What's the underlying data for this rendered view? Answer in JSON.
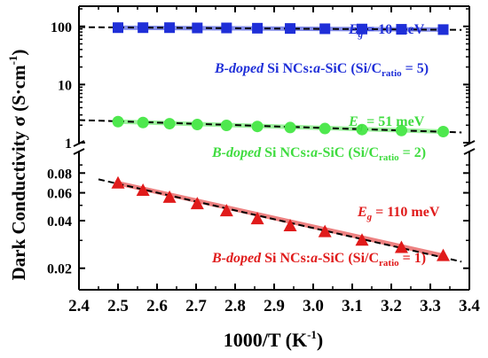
{
  "chart_data": {
    "type": "scatter",
    "xlabel": "1000/T (K",
    "xlabel_sup": "-1",
    "xlabel_close": ")",
    "ylabel": "Dark Conductivity σ (S·cm",
    "ylabel_sup": "-1",
    "ylabel_close": ")",
    "xlim": [
      2.4,
      3.4
    ],
    "x_ticks": [
      "2.4",
      "2.5",
      "2.6",
      "2.7",
      "2.8",
      "2.9",
      "3.0",
      "3.1",
      "3.2",
      "3.3",
      "3.4"
    ],
    "y_scale": "log, broken axis",
    "y_segments": [
      {
        "range": [
          1,
          100
        ],
        "ticks": [
          "1",
          "10",
          "100"
        ]
      },
      {
        "range": [
          0.015,
          0.1
        ],
        "ticks": [
          "0.02",
          "0.04",
          "0.06",
          "0.08"
        ]
      }
    ],
    "series": [
      {
        "marker": "square",
        "color": "#1f2fd8",
        "x": [
          2.5,
          2.564,
          2.632,
          2.703,
          2.778,
          2.857,
          2.941,
          3.03,
          3.125,
          3.226,
          3.333
        ],
        "y": [
          95,
          95,
          95,
          94,
          94,
          93,
          92,
          91,
          90,
          89,
          88
        ],
        "fit": [
          [
            2.4,
            97
          ],
          [
            3.38,
            87
          ]
        ],
        "eg_label": "E",
        "eg_sub": "g",
        "eg_value": " = 10 meV",
        "desc_italic": "B-doped",
        "desc_mid": " Si NCs:",
        "desc_italic2": "a",
        "desc_rest": "-SiC (Si/C",
        "desc_sub": "ratio",
        "desc_end": " = 5)"
      },
      {
        "marker": "circle",
        "color": "#4ee84e",
        "x": [
          2.5,
          2.564,
          2.632,
          2.703,
          2.778,
          2.857,
          2.941,
          3.03,
          3.125,
          3.226,
          3.333
        ],
        "y": [
          2.3,
          2.22,
          2.12,
          2.05,
          1.98,
          1.9,
          1.82,
          1.75,
          1.68,
          1.62,
          1.55
        ],
        "fit": [
          [
            2.4,
            2.45
          ],
          [
            3.38,
            1.5
          ]
        ],
        "eg_label": "E",
        "eg_sub": "g",
        "eg_value": " = 51 meV",
        "desc_italic": "B-doped",
        "desc_mid": " Si NCs:",
        "desc_italic2": "a",
        "desc_rest": "-SiC (Si/C",
        "desc_sub": "ratio",
        "desc_end": " = 2)"
      },
      {
        "marker": "triangle",
        "color": "#e01b1b",
        "x": [
          2.5,
          2.564,
          2.632,
          2.703,
          2.778,
          2.857,
          2.941,
          3.03,
          3.125,
          3.226,
          3.333
        ],
        "y": [
          0.069,
          0.062,
          0.056,
          0.051,
          0.046,
          0.041,
          0.037,
          0.034,
          0.03,
          0.027,
          0.024
        ],
        "fit": [
          [
            2.45,
            0.073
          ],
          [
            3.38,
            0.022
          ]
        ],
        "eg_label": "E",
        "eg_sub": "g",
        "eg_value": " = 110 meV",
        "desc_italic": "B-doped",
        "desc_mid": " Si NCs:",
        "desc_italic2": "a",
        "desc_rest": "-SiC (Si/C",
        "desc_sub": "ratio",
        "desc_end": " = 1)"
      }
    ]
  },
  "colors": {
    "axis": "#000000",
    "fit_line": "#000000",
    "desc_text": "#e01b1b",
    "eg_text": "#e01b1b"
  },
  "label_colors": [
    "#1f2fd8",
    "#3fdc3f",
    "#e01b1b"
  ]
}
